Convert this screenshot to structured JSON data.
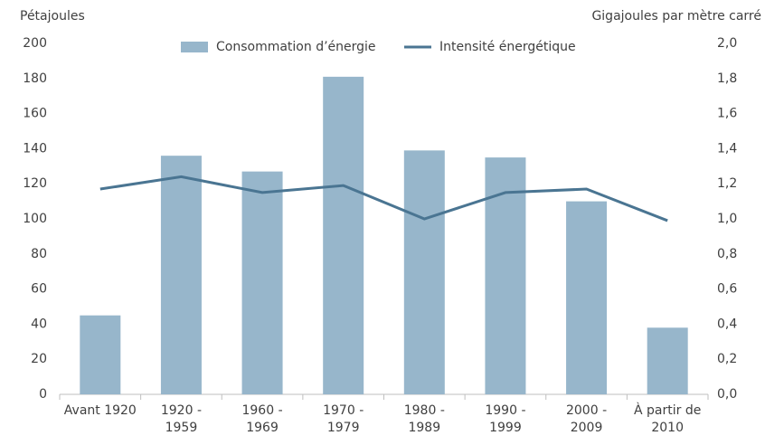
{
  "chart_data": {
    "type": "bar-line",
    "y_label": "Pétajoules",
    "y2_label": "Gigajoules par mètre carré",
    "categories": [
      "Avant 1920",
      "1920 -\n1959",
      "1960 -\n1969",
      "1970 -\n1979",
      "1980 -\n1989",
      "1990 -\n1999",
      "2000 -\n2009",
      "À partir de\n2010"
    ],
    "series": [
      {
        "name": "Consommation d’énergie",
        "type": "bar",
        "color": "#97b6cb",
        "values": [
          45,
          136,
          127,
          181,
          139,
          135,
          110,
          38
        ]
      },
      {
        "name": "Intensité énergétique",
        "type": "line",
        "axis": "y2",
        "color": "#4a7592",
        "values": [
          1.17,
          1.24,
          1.15,
          1.19,
          1.0,
          1.15,
          1.17,
          0.99
        ]
      }
    ],
    "ylim": [
      0,
      200
    ],
    "yticks": [
      0,
      20,
      40,
      60,
      80,
      100,
      120,
      140,
      160,
      180,
      200
    ],
    "y2lim": [
      0,
      2
    ],
    "y2ticks": [
      {
        "value": 0,
        "label": "0,0"
      },
      {
        "value": 0.2,
        "label": "0,2"
      },
      {
        "value": 0.4,
        "label": "0,4"
      },
      {
        "value": 0.6,
        "label": "0,6"
      },
      {
        "value": 0.8,
        "label": "0,8"
      },
      {
        "value": 1,
        "label": "1,0"
      },
      {
        "value": 1.2,
        "label": "1,2"
      },
      {
        "value": 1.4,
        "label": "1,4"
      },
      {
        "value": 1.6,
        "label": "1,6"
      },
      {
        "value": 1.8,
        "label": "1,8"
      },
      {
        "value": 2,
        "label": "2,0"
      }
    ],
    "legend": "top"
  }
}
